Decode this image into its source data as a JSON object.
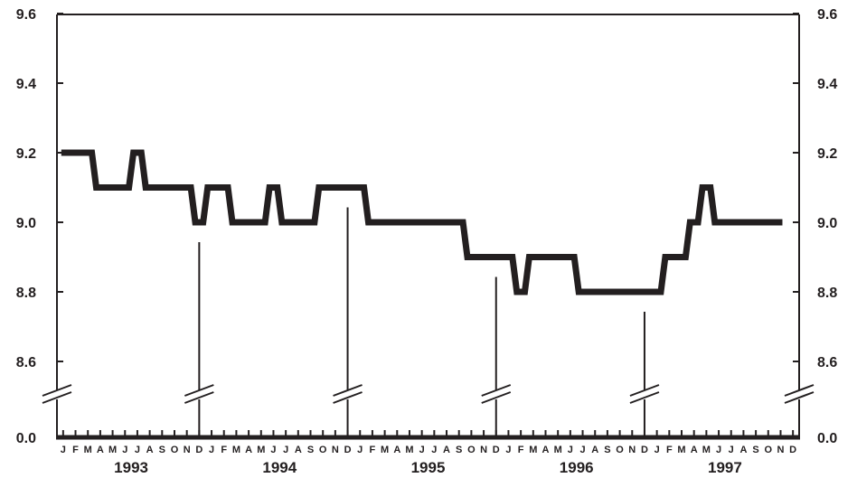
{
  "chart_data": {
    "type": "line",
    "title": "",
    "xlabel": "",
    "ylabel": "",
    "ylim": [
      8.5,
      9.6
    ],
    "y_axis_break": true,
    "y_ticks": [
      "9.6",
      "9.4",
      "9.2",
      "9.0",
      "8.8",
      "8.6",
      "0.0"
    ],
    "y_tick_values": [
      9.6,
      9.4,
      9.2,
      9.0,
      8.8,
      8.6,
      0.0
    ],
    "months": [
      "J",
      "F",
      "M",
      "A",
      "M",
      "J",
      "J",
      "A",
      "S",
      "O",
      "N",
      "D"
    ],
    "years": [
      "1993",
      "1994",
      "1995",
      "1996",
      "1997"
    ],
    "grid": false,
    "legend": "none",
    "colors": {
      "line": "#231f20",
      "axis": "#231f20"
    },
    "series": [
      {
        "values": [
          9.2,
          9.2,
          9.2,
          9.1,
          9.1,
          9.1,
          9.2,
          9.1,
          9.1,
          9.1,
          9.1,
          9.0,
          9.1,
          9.1,
          9.0,
          9.0,
          9.0,
          9.1,
          9.0,
          9.0,
          9.0,
          9.1,
          9.1,
          9.1,
          9.1,
          9.0,
          9.0,
          9.0,
          9.0,
          9.0,
          9.0,
          9.0,
          9.0,
          8.9,
          8.9,
          8.9,
          8.9,
          8.8,
          8.9,
          8.9,
          8.9,
          8.9,
          8.8,
          8.8,
          8.8,
          8.8,
          8.8,
          8.8,
          8.8,
          8.9,
          8.9,
          9.0,
          9.1,
          9.0,
          9.0,
          9.0,
          9.0,
          9.0,
          9.0
        ]
      }
    ]
  }
}
